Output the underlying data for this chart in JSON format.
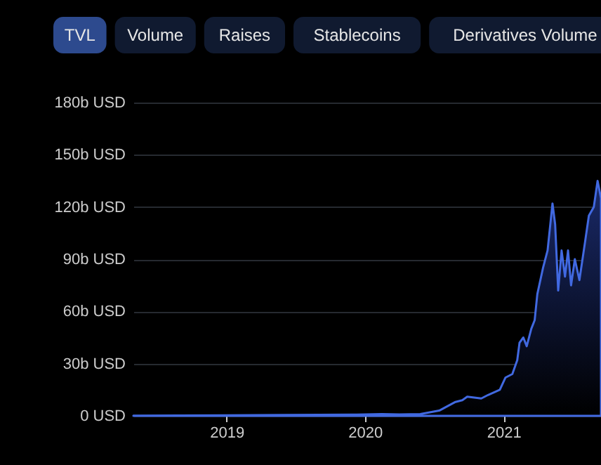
{
  "chart_data": {
    "type": "area",
    "annotations": [
      "TVL",
      "Volume",
      "Raises",
      "Stablecoins",
      "Derivatives Volume"
    ],
    "x": [
      "2018-04-30",
      "2018-09-01",
      "2019-01-01",
      "2019-06-01",
      "2019-12-01",
      "2020-02-15",
      "2020-04-01",
      "2020-05-26",
      "2020-07-15",
      "2020-08-27",
      "2020-09-14",
      "2020-09-27",
      "2020-11-03",
      "2020-11-21",
      "2020-12-22",
      "2021-01-06",
      "2021-01-24",
      "2021-02-06",
      "2021-02-12",
      "2021-02-22",
      "2021-03-03",
      "2021-03-15",
      "2021-03-24",
      "2021-03-31",
      "2021-04-15",
      "2021-04-27",
      "2021-05-10",
      "2021-05-17",
      "2021-05-25",
      "2021-06-03",
      "2021-06-12",
      "2021-06-20",
      "2021-06-28",
      "2021-07-08",
      "2021-07-20",
      "2021-08-04",
      "2021-08-14",
      "2021-08-27",
      "2021-09-06",
      "2021-09-15"
    ],
    "series": [
      {
        "color": "#4169e1",
        "values": [
          0.1,
          0.2,
          0.3,
          0.5,
          0.7,
          1,
          0.8,
          1,
          3,
          8,
          9,
          11,
          10,
          12,
          15,
          22,
          24,
          32,
          42,
          45,
          40,
          50,
          55,
          70,
          85,
          95,
          122,
          110,
          72,
          95,
          80,
          95,
          75,
          90,
          78,
          100,
          115,
          120,
          135,
          125
        ]
      }
    ],
    "xlim": [
      "2018-04-30",
      "2021-09-15"
    ],
    "ylim": [
      0,
      180
    ],
    "xticks": [
      {
        "value": "2019-01-01",
        "label": "2019"
      },
      {
        "value": "2020-01-01",
        "label": "2020"
      },
      {
        "value": "2021-01-01",
        "label": "2021"
      }
    ],
    "yticks": [
      {
        "value": 0,
        "label": "0 USD"
      },
      {
        "value": 30,
        "label": "30b USD"
      },
      {
        "value": 60,
        "label": "60b USD"
      },
      {
        "value": 90,
        "label": "90b USD"
      },
      {
        "value": 120,
        "label": "120b USD"
      },
      {
        "value": 150,
        "label": "150b USD"
      },
      {
        "value": 180,
        "label": "180b USD"
      }
    ],
    "grid": "y",
    "legend": false
  }
}
